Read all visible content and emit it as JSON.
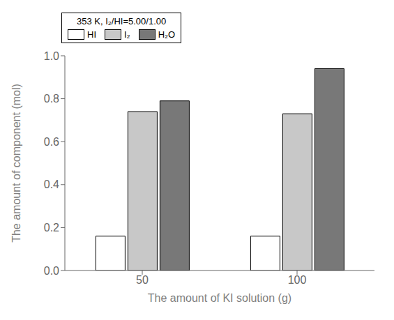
{
  "chart_data": {
    "type": "bar",
    "categories": [
      "50",
      "100"
    ],
    "series": [
      {
        "name": "HI",
        "color": "#ffffff",
        "values": [
          0.16,
          0.16
        ]
      },
      {
        "name": "I₂",
        "color": "#c8c8c8",
        "values": [
          0.74,
          0.73
        ]
      },
      {
        "name": "H₂O",
        "color": "#787878",
        "values": [
          0.79,
          0.94
        ]
      }
    ],
    "xlabel": "The amount of KI solution (g)",
    "ylabel": "The amount of component (mol)",
    "ylim": [
      0.0,
      1.0
    ],
    "yticks": [
      {
        "value": 0,
        "label": "0.0"
      },
      0.2,
      0.4,
      0.6,
      0.8,
      {
        "value": 1,
        "label": "1.0"
      }
    ],
    "annotation": "353 K, I₂/HI=5.00/1.00",
    "legend": "upper left",
    "grid": false
  }
}
